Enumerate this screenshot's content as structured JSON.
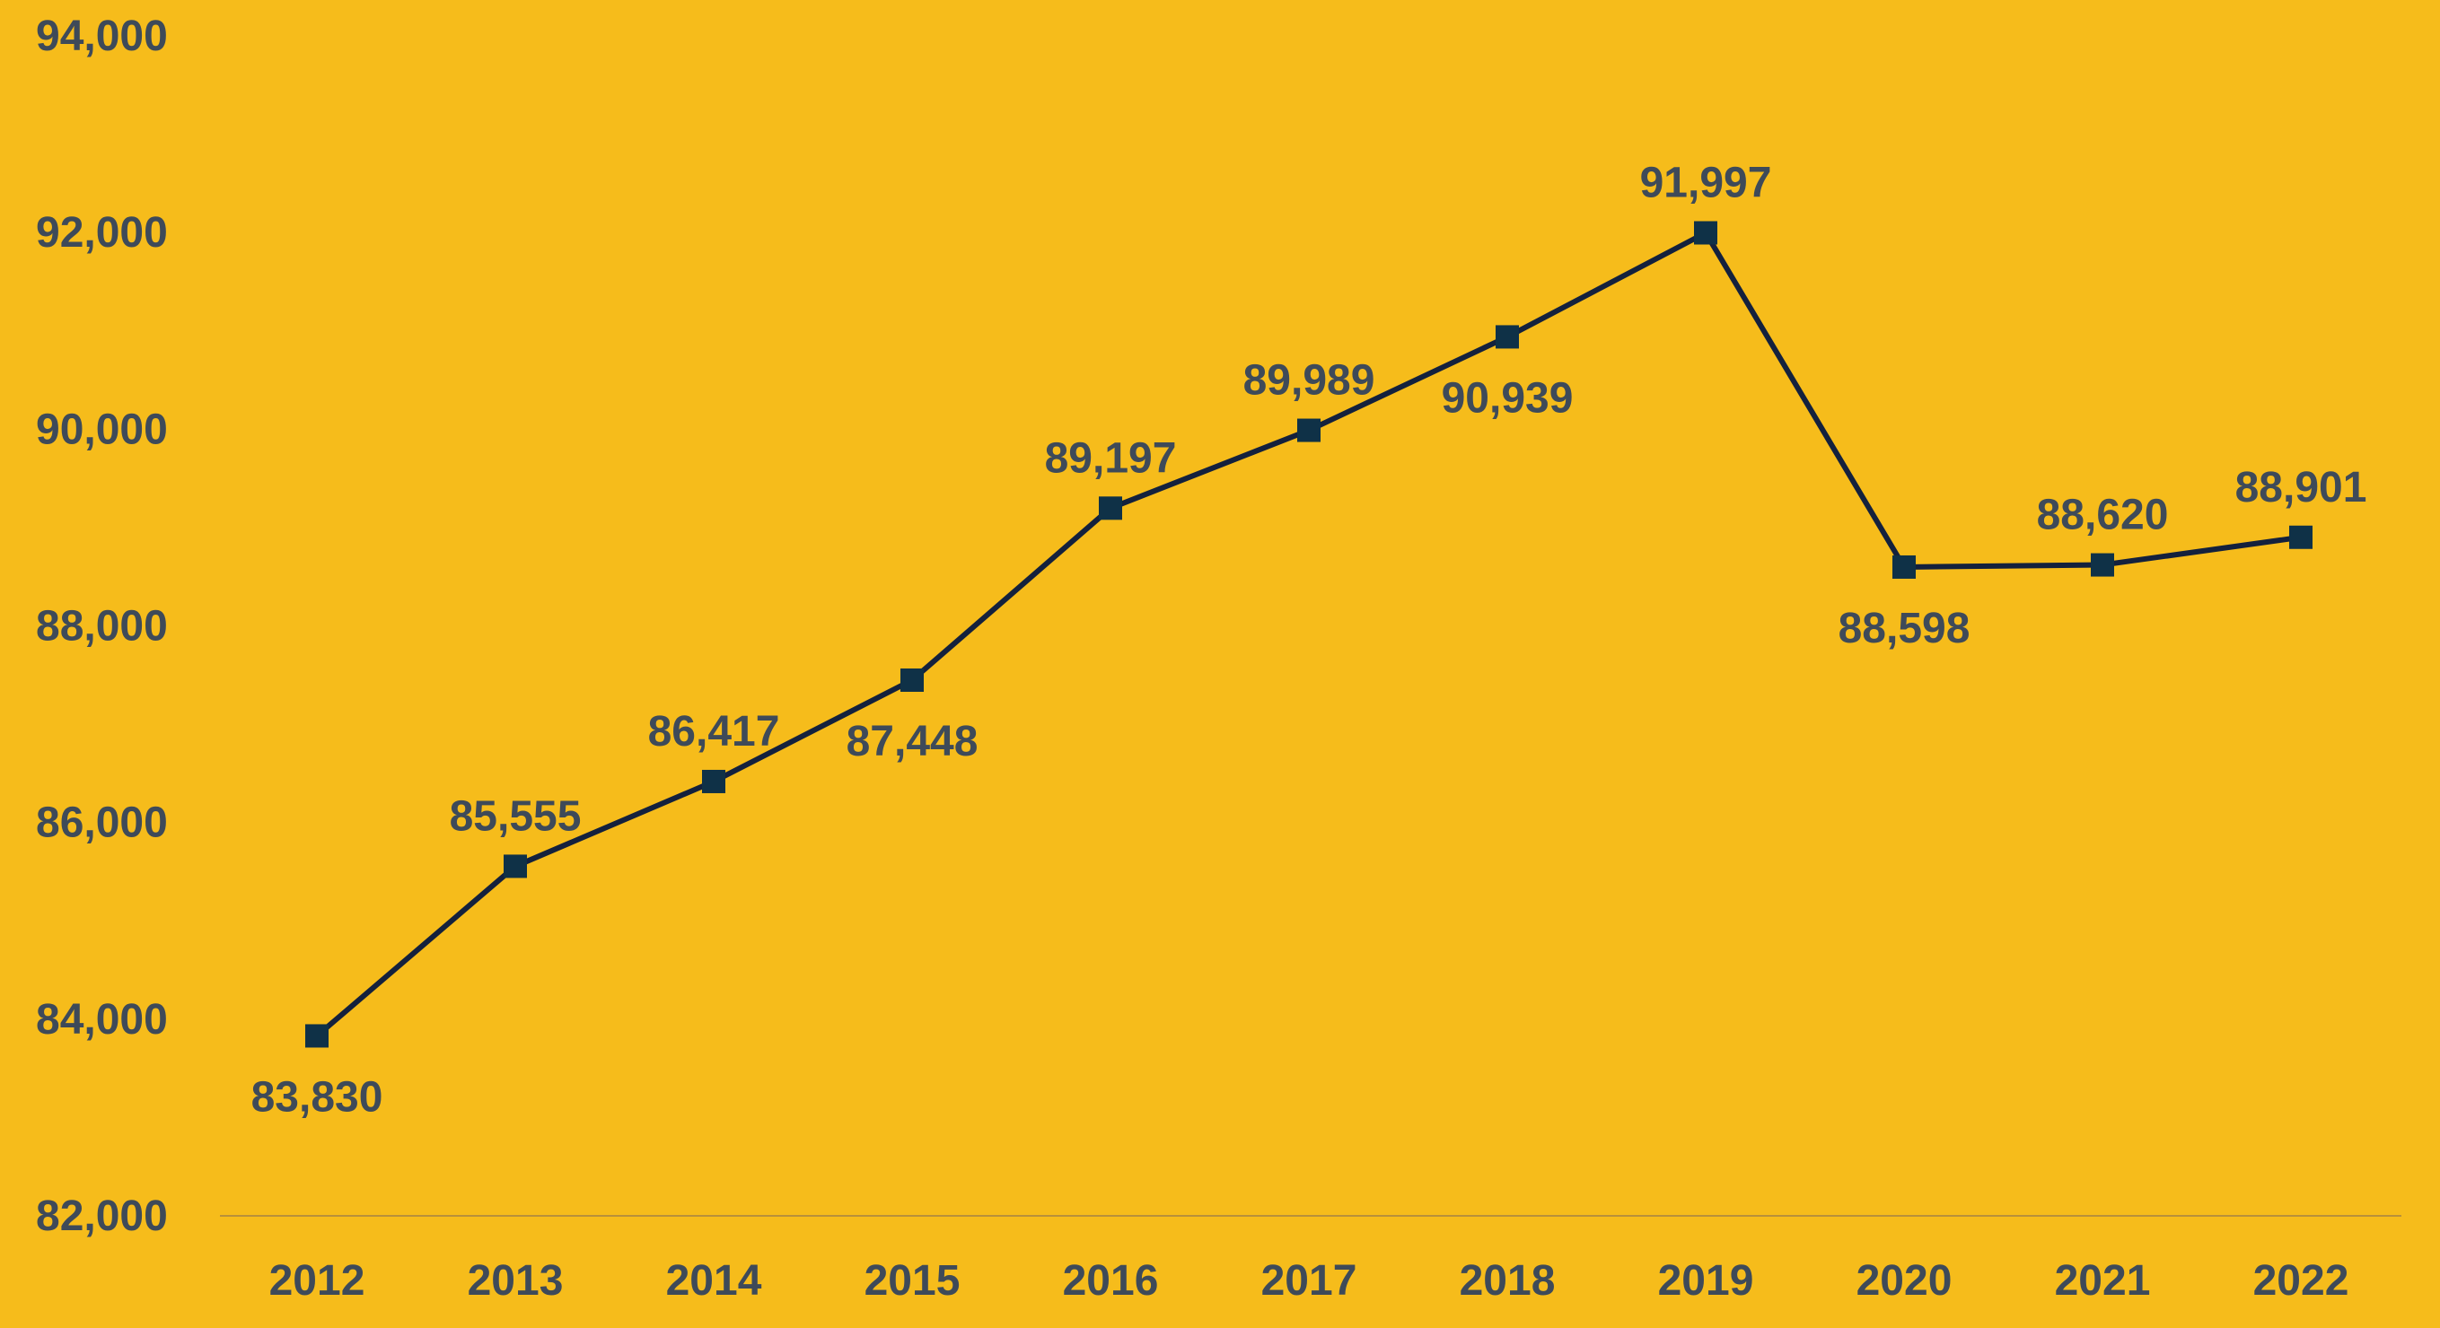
{
  "chart_data": {
    "type": "line",
    "title": "",
    "xlabel": "",
    "ylabel": "",
    "categories": [
      "2012",
      "2013",
      "2014",
      "2015",
      "2016",
      "2017",
      "2018",
      "2019",
      "2020",
      "2021",
      "2022"
    ],
    "series": [
      {
        "values": [
          83830,
          85555,
          86417,
          87448,
          89197,
          89989,
          90939,
          91997,
          88598,
          88620,
          88901
        ],
        "labels": [
          "83,830",
          "85,555",
          "86,417",
          "87,448",
          "89,197",
          "89,989",
          "90,939",
          "91,997",
          "88,598",
          "88,620",
          "88,901"
        ],
        "label_positions": [
          "below",
          "above",
          "above",
          "below",
          "above",
          "above",
          "below",
          "above",
          "below",
          "above",
          "above"
        ]
      }
    ],
    "ylim": [
      82000,
      94000
    ],
    "yticks": [
      82000,
      84000,
      86000,
      88000,
      90000,
      92000,
      94000
    ],
    "ytick_labels": [
      "82,000",
      "84,000",
      "86,000",
      "88,000",
      "90,000",
      "92,000",
      "94,000"
    ],
    "grid": false,
    "legend": "none",
    "marker": "square",
    "colors": {
      "background": "#F6BC1B",
      "line": "#14213D",
      "marker": "#0F3147",
      "text": "#3E4A59",
      "axis": "#B8913A"
    }
  }
}
